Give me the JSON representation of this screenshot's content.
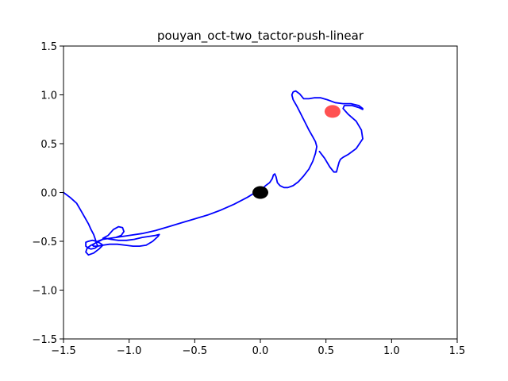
{
  "chart_data": {
    "type": "line",
    "title": "pouyan_oct-two_tactor-push-linear",
    "xlabel": "",
    "ylabel": "",
    "xlim": [
      -1.5,
      1.5
    ],
    "ylim": [
      -1.5,
      1.5
    ],
    "xticks": [
      -1.5,
      -1.0,
      -0.5,
      0.0,
      0.5,
      1.0,
      1.5
    ],
    "yticks": [
      -1.5,
      -1.0,
      -0.5,
      0.0,
      0.5,
      1.0,
      1.5
    ],
    "xtick_labels": [
      "−1.5",
      "−1.0",
      "−0.5",
      "0.0",
      "0.5",
      "1.0",
      "1.5"
    ],
    "ytick_labels": [
      "−1.5",
      "−1.0",
      "−0.5",
      "0.0",
      "0.5",
      "1.0",
      "1.5"
    ],
    "grid": false,
    "colors": {
      "trajectory": "#0000ff",
      "start_marker": "#000000",
      "target_marker": "#ff3333"
    },
    "series": [
      {
        "x": [
          -1.5,
          -1.45,
          -1.4,
          -1.37,
          -1.34,
          -1.31,
          -1.29,
          -1.27,
          -1.26,
          -1.25,
          -1.24,
          -1.26,
          -1.29,
          -1.31,
          -1.33,
          -1.33,
          -1.31,
          -1.28,
          -1.25,
          -1.22,
          -1.2,
          -1.23,
          -1.27,
          -1.31,
          -1.33,
          -1.32,
          -1.29,
          -1.26,
          -1.24,
          -1.2,
          -1.15,
          -1.1,
          -1.06,
          -1.04,
          -1.05,
          -1.08,
          -1.12,
          -1.16,
          -1.2,
          -1.18,
          -1.14,
          -1.08,
          -1.02,
          -0.96,
          -0.9,
          -0.85,
          -0.8,
          -0.77,
          -0.78,
          -0.82,
          -0.87,
          -0.92,
          -0.97,
          -1.03,
          -1.09,
          -1.15,
          -1.2,
          -1.24,
          -1.27,
          -1.28,
          -1.26,
          -1.2,
          -1.1,
          -1.0,
          -0.9,
          -0.8,
          -0.7,
          -0.6,
          -0.5,
          -0.4,
          -0.3,
          -0.2,
          -0.1,
          -0.05,
          0.0,
          0.04,
          0.07,
          0.09,
          0.1,
          0.11,
          0.12,
          0.13,
          0.15,
          0.18,
          0.21,
          0.25,
          0.29,
          0.33,
          0.37,
          0.4,
          0.42,
          0.43,
          0.42,
          0.4,
          0.37,
          0.34,
          0.31,
          0.28,
          0.25,
          0.24,
          0.25,
          0.27,
          0.3,
          0.33,
          0.37,
          0.41,
          0.46,
          0.51,
          0.57,
          0.63,
          0.69,
          0.75,
          0.78,
          0.78,
          0.75,
          0.7,
          0.64,
          0.63,
          0.67,
          0.73,
          0.77,
          0.78,
          0.73,
          0.67,
          0.63,
          0.61,
          0.6,
          0.59,
          0.58,
          0.56,
          0.53,
          0.49,
          0.45
        ],
        "y": [
          0.0,
          -0.05,
          -0.11,
          -0.18,
          -0.25,
          -0.32,
          -0.38,
          -0.43,
          -0.47,
          -0.51,
          -0.55,
          -0.57,
          -0.58,
          -0.57,
          -0.55,
          -0.51,
          -0.5,
          -0.49,
          -0.5,
          -0.52,
          -0.54,
          -0.58,
          -0.62,
          -0.64,
          -0.61,
          -0.57,
          -0.54,
          -0.52,
          -0.5,
          -0.48,
          -0.47,
          -0.46,
          -0.44,
          -0.4,
          -0.36,
          -0.35,
          -0.38,
          -0.44,
          -0.47,
          -0.47,
          -0.48,
          -0.49,
          -0.49,
          -0.48,
          -0.46,
          -0.45,
          -0.44,
          -0.43,
          -0.45,
          -0.5,
          -0.54,
          -0.55,
          -0.55,
          -0.54,
          -0.53,
          -0.53,
          -0.54,
          -0.55,
          -0.55,
          -0.54,
          -0.52,
          -0.48,
          -0.46,
          -0.44,
          -0.42,
          -0.39,
          -0.35,
          -0.31,
          -0.27,
          -0.23,
          -0.18,
          -0.12,
          -0.05,
          -0.01,
          0.02,
          0.07,
          0.1,
          0.14,
          0.18,
          0.19,
          0.16,
          0.1,
          0.07,
          0.05,
          0.05,
          0.07,
          0.11,
          0.17,
          0.24,
          0.32,
          0.4,
          0.47,
          0.52,
          0.57,
          0.64,
          0.72,
          0.8,
          0.88,
          0.95,
          1.0,
          1.03,
          1.04,
          1.01,
          0.96,
          0.96,
          0.97,
          0.97,
          0.95,
          0.92,
          0.91,
          0.91,
          0.89,
          0.86,
          0.85,
          0.87,
          0.89,
          0.89,
          0.86,
          0.8,
          0.73,
          0.64,
          0.55,
          0.45,
          0.39,
          0.36,
          0.34,
          0.31,
          0.26,
          0.21,
          0.21,
          0.26,
          0.35,
          0.42
        ]
      }
    ],
    "markers": [
      {
        "x": 0.0,
        "y": 0.0,
        "color": "#000000"
      },
      {
        "x": 0.55,
        "y": 0.83,
        "color": "#ff3333"
      }
    ]
  }
}
